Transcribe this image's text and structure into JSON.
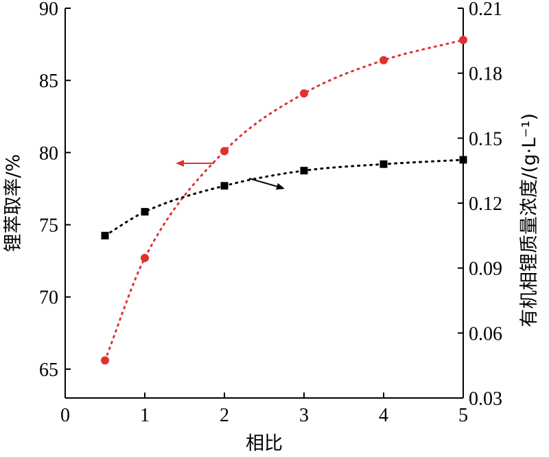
{
  "chart_data": {
    "type": "line",
    "title": "",
    "xlabel": "相比",
    "ylabel": "锂萃取率/%",
    "y2label": "有机相锂质量浓度/(g·L⁻¹)",
    "xlim": [
      0,
      5
    ],
    "ylim": [
      63,
      90
    ],
    "y2lim": [
      0.03,
      0.21
    ],
    "x_ticks": [
      "0",
      "1",
      "2",
      "3",
      "4",
      "5"
    ],
    "y_ticks": [
      "65",
      "70",
      "75",
      "80",
      "85",
      "90"
    ],
    "y2_ticks": [
      "0.03",
      "0.06",
      "0.09",
      "0.12",
      "0.15",
      "0.18",
      "0.21"
    ],
    "grid": false,
    "legend": "none",
    "series": [
      {
        "axis": "left",
        "color": "#e03030",
        "marker": "circle",
        "x": [
          0.5,
          1,
          2,
          3,
          4,
          5
        ],
        "values": [
          65.6,
          72.7,
          80.1,
          84.1,
          86.4,
          87.8
        ],
        "arrow_direction": "left"
      },
      {
        "axis": "right",
        "color": "#000000",
        "marker": "square",
        "x": [
          0.5,
          1,
          2,
          3,
          4,
          5
        ],
        "values": [
          0.105,
          0.116,
          0.128,
          0.135,
          0.138,
          0.14
        ],
        "arrow_direction": "right"
      }
    ]
  }
}
